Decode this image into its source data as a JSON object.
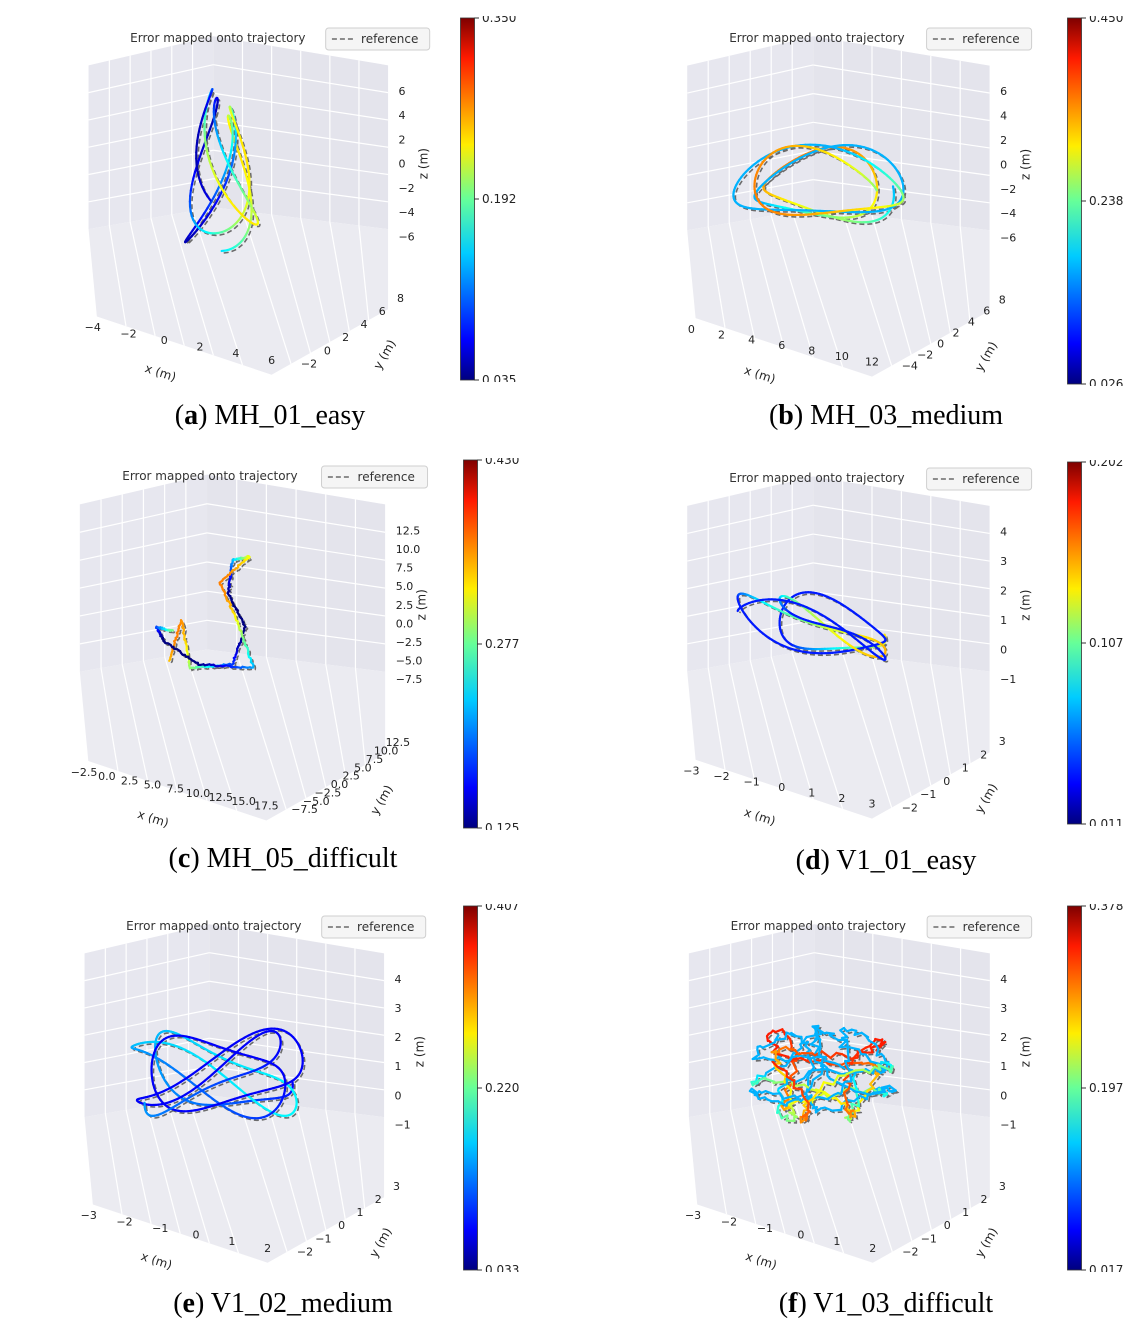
{
  "figure": {
    "legend_title": "Error mapped onto trajectory",
    "legend_entry": "reference",
    "x_axis_label": "x (m)",
    "y_axis_label": "y (m)",
    "z_axis_label": "z (m)"
  },
  "chart_data": [
    {
      "type": "line3d",
      "id": "a",
      "caption_label": "a",
      "caption_text": "MH_01_easy",
      "title": "Error mapped onto trajectory",
      "legend": [
        "reference"
      ],
      "xlabel": "x (m)",
      "ylabel": "y (m)",
      "zlabel": "z (m)",
      "x_ticks": [
        "−4",
        "−2",
        "0",
        "2",
        "4",
        "6"
      ],
      "y_ticks": [
        "−2",
        "0",
        "2",
        "4",
        "6",
        "8"
      ],
      "z_ticks": [
        "6",
        "4",
        "2",
        "0",
        "−2",
        "−4",
        "−6"
      ],
      "colorbar": {
        "min": "0.035",
        "mid": "0.192",
        "max": "0.350"
      },
      "colormap": "jet"
    },
    {
      "type": "line3d",
      "id": "b",
      "caption_label": "b",
      "caption_text": "MH_03_medium",
      "title": "Error mapped onto trajectory",
      "legend": [
        "reference"
      ],
      "xlabel": "x (m)",
      "ylabel": "y (m)",
      "zlabel": "z (m)",
      "x_ticks": [
        "0",
        "2",
        "4",
        "6",
        "8",
        "10",
        "12"
      ],
      "y_ticks": [
        "−4",
        "−2",
        "0",
        "2",
        "4",
        "6",
        "8"
      ],
      "z_ticks": [
        "6",
        "4",
        "2",
        "0",
        "−2",
        "−4",
        "−6"
      ],
      "colorbar": {
        "min": "0.026",
        "mid": "0.238",
        "max": "0.450"
      },
      "colormap": "jet"
    },
    {
      "type": "line3d",
      "id": "c",
      "caption_label": "c",
      "caption_text": "MH_05_difficult",
      "title": "Error mapped onto trajectory",
      "legend": [
        "reference"
      ],
      "xlabel": "x (m)",
      "ylabel": "y (m)",
      "zlabel": "z (m)",
      "x_ticks": [
        "−2.5",
        "0.0",
        "2.5",
        "5.0",
        "7.5",
        "10.0",
        "12.5",
        "15.0",
        "17.5"
      ],
      "y_ticks": [
        "−7.5",
        "−5.0",
        "−2.5",
        "0.0",
        "2.5",
        "5.0",
        "7.5",
        "10.0",
        "12.5"
      ],
      "z_ticks": [
        "12.5",
        "10.0",
        "7.5",
        "5.0",
        "2.5",
        "0.0",
        "−2.5",
        "−5.0",
        "−7.5"
      ],
      "colorbar": {
        "min": "0.125",
        "mid": "0.277",
        "max": "0.430"
      },
      "colormap": "jet"
    },
    {
      "type": "line3d",
      "id": "d",
      "caption_label": "d",
      "caption_text": "V1_01_easy",
      "title": "Error mapped onto trajectory",
      "legend": [
        "reference"
      ],
      "xlabel": "x (m)",
      "ylabel": "y (m)",
      "zlabel": "z (m)",
      "x_ticks": [
        "−3",
        "−2",
        "−1",
        "0",
        "1",
        "2",
        "3"
      ],
      "y_ticks": [
        "−2",
        "−1",
        "0",
        "1",
        "2",
        "3"
      ],
      "z_ticks": [
        "4",
        "3",
        "2",
        "1",
        "0",
        "−1"
      ],
      "colorbar": {
        "min": "0.011",
        "mid": "0.107",
        "max": "0.202"
      },
      "colormap": "jet"
    },
    {
      "type": "line3d",
      "id": "e",
      "caption_label": "e",
      "caption_text": "V1_02_medium",
      "title": "Error mapped onto trajectory",
      "legend": [
        "reference"
      ],
      "xlabel": "x (m)",
      "ylabel": "y (m)",
      "zlabel": "z (m)",
      "x_ticks": [
        "−3",
        "−2",
        "−1",
        "0",
        "1",
        "2"
      ],
      "y_ticks": [
        "−2",
        "−1",
        "0",
        "1",
        "2",
        "3"
      ],
      "z_ticks": [
        "4",
        "3",
        "2",
        "1",
        "0",
        "−1"
      ],
      "colorbar": {
        "min": "0.033",
        "mid": "0.220",
        "max": "0.407"
      },
      "colormap": "jet"
    },
    {
      "type": "line3d",
      "id": "f",
      "caption_label": "f",
      "caption_text": "V1_03_difficult",
      "title": "Error mapped onto trajectory",
      "legend": [
        "reference"
      ],
      "xlabel": "x (m)",
      "ylabel": "y (m)",
      "zlabel": "z (m)",
      "x_ticks": [
        "−3",
        "−2",
        "−1",
        "0",
        "1",
        "2"
      ],
      "y_ticks": [
        "−2",
        "−1",
        "0",
        "1",
        "2",
        "3"
      ],
      "z_ticks": [
        "4",
        "3",
        "2",
        "1",
        "0",
        "−1"
      ],
      "colorbar": {
        "min": "0.017",
        "mid": "0.197",
        "max": "0.378"
      },
      "colormap": "jet"
    }
  ]
}
